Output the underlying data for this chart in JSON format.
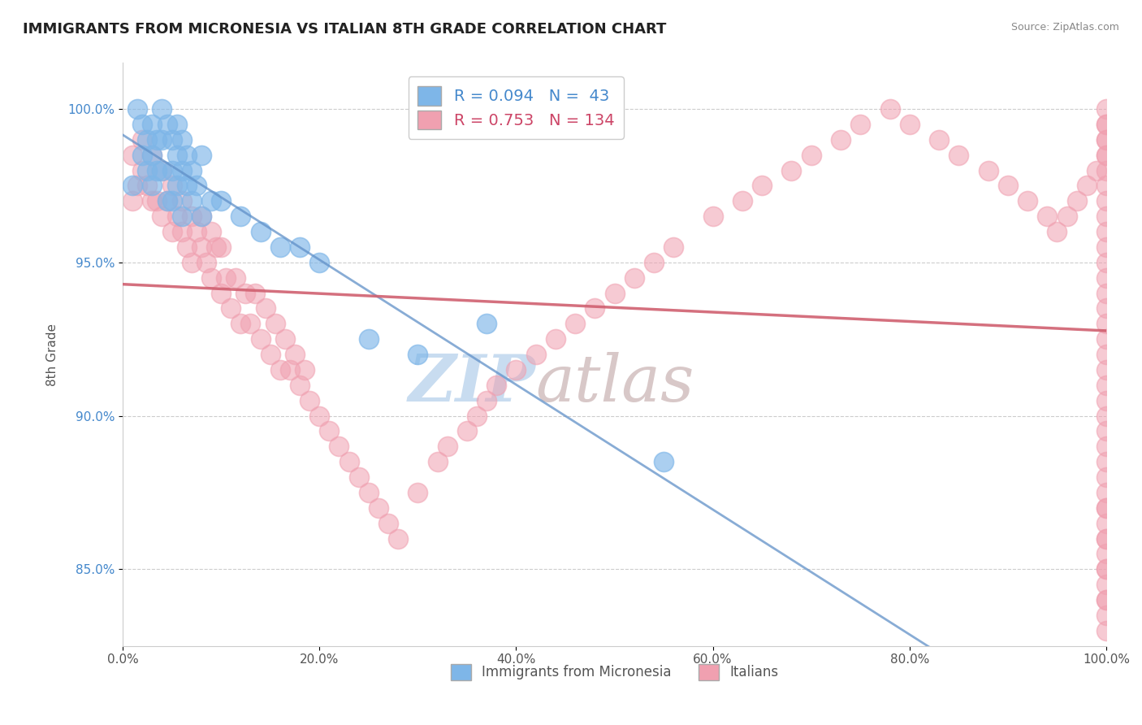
{
  "title": "IMMIGRANTS FROM MICRONESIA VS ITALIAN 8TH GRADE CORRELATION CHART",
  "source": "Source: ZipAtlas.com",
  "ylabel": "8th Grade",
  "xlim": [
    0.0,
    100.0
  ],
  "ylim": [
    82.5,
    101.5
  ],
  "yticks": [
    85.0,
    90.0,
    95.0,
    100.0
  ],
  "ytick_labels": [
    "85.0%",
    "90.0%",
    "95.0%",
    "100.0%"
  ],
  "xticks": [
    0.0,
    20.0,
    40.0,
    60.0,
    80.0,
    100.0
  ],
  "xtick_labels": [
    "0.0%",
    "20.0%",
    "40.0%",
    "60.0%",
    "80.0%",
    "100.0%"
  ],
  "legend_R_blue": "R = 0.094",
  "legend_N_blue": "N =  43",
  "legend_R_pink": "R = 0.753",
  "legend_N_pink": "N = 134",
  "blue_color": "#7EB6E8",
  "pink_color": "#F0A0B0",
  "blue_line_color": "#6090C8",
  "pink_line_color": "#D06070",
  "title_fontsize": 13,
  "watermark_zip": "ZIP",
  "watermark_atlas": "atlas",
  "watermark_zip_color": "#C8DCF0",
  "watermark_atlas_color": "#D8C8C8",
  "blue_scatter_x": [
    1.0,
    1.5,
    2.0,
    2.0,
    2.5,
    2.5,
    3.0,
    3.0,
    3.0,
    3.5,
    3.5,
    4.0,
    4.0,
    4.0,
    4.5,
    4.5,
    5.0,
    5.0,
    5.0,
    5.5,
    5.5,
    5.5,
    6.0,
    6.0,
    6.0,
    6.5,
    6.5,
    7.0,
    7.0,
    7.5,
    8.0,
    8.0,
    9.0,
    10.0,
    12.0,
    14.0,
    16.0,
    18.0,
    20.0,
    25.0,
    30.0,
    37.0,
    55.0
  ],
  "blue_scatter_y": [
    97.5,
    100.0,
    99.5,
    98.5,
    99.0,
    98.0,
    99.5,
    98.5,
    97.5,
    99.0,
    98.0,
    100.0,
    99.0,
    98.0,
    99.5,
    97.0,
    99.0,
    98.0,
    97.0,
    99.5,
    98.5,
    97.5,
    99.0,
    98.0,
    96.5,
    98.5,
    97.5,
    98.0,
    97.0,
    97.5,
    98.5,
    96.5,
    97.0,
    97.0,
    96.5,
    96.0,
    95.5,
    95.5,
    95.0,
    92.5,
    92.0,
    93.0,
    88.5
  ],
  "pink_scatter_x": [
    1.0,
    1.0,
    1.5,
    2.0,
    2.0,
    2.5,
    3.0,
    3.0,
    3.5,
    4.0,
    4.0,
    4.5,
    5.0,
    5.0,
    5.5,
    6.0,
    6.0,
    6.5,
    7.0,
    7.0,
    7.5,
    8.0,
    8.0,
    8.5,
    9.0,
    9.0,
    9.5,
    10.0,
    10.0,
    10.5,
    11.0,
    11.5,
    12.0,
    12.5,
    13.0,
    13.5,
    14.0,
    14.5,
    15.0,
    15.5,
    16.0,
    16.5,
    17.0,
    17.5,
    18.0,
    18.5,
    19.0,
    20.0,
    21.0,
    22.0,
    23.0,
    24.0,
    25.0,
    26.0,
    27.0,
    28.0,
    30.0,
    32.0,
    33.0,
    35.0,
    36.0,
    37.0,
    38.0,
    40.0,
    42.0,
    44.0,
    46.0,
    48.0,
    50.0,
    52.0,
    54.0,
    56.0,
    60.0,
    63.0,
    65.0,
    68.0,
    70.0,
    73.0,
    75.0,
    78.0,
    80.0,
    83.0,
    85.0,
    88.0,
    90.0,
    92.0,
    94.0,
    95.0,
    96.0,
    97.0,
    98.0,
    99.0,
    100.0,
    100.0,
    100.0,
    100.0,
    100.0,
    100.0,
    100.0,
    100.0,
    100.0,
    100.0,
    100.0,
    100.0,
    100.0,
    100.0,
    100.0,
    100.0,
    100.0,
    100.0,
    100.0,
    100.0,
    100.0,
    100.0,
    100.0,
    100.0,
    100.0,
    100.0,
    100.0,
    100.0,
    100.0,
    100.0,
    100.0,
    100.0,
    100.0,
    100.0,
    100.0,
    100.0,
    100.0,
    100.0,
    100.0,
    100.0,
    100.0,
    100.0
  ],
  "pink_scatter_y": [
    97.0,
    98.5,
    97.5,
    98.0,
    99.0,
    97.5,
    97.0,
    98.5,
    97.0,
    96.5,
    98.0,
    97.0,
    96.0,
    97.5,
    96.5,
    96.0,
    97.0,
    95.5,
    95.0,
    96.5,
    96.0,
    95.5,
    96.5,
    95.0,
    94.5,
    96.0,
    95.5,
    94.0,
    95.5,
    94.5,
    93.5,
    94.5,
    93.0,
    94.0,
    93.0,
    94.0,
    92.5,
    93.5,
    92.0,
    93.0,
    91.5,
    92.5,
    91.5,
    92.0,
    91.0,
    91.5,
    90.5,
    90.0,
    89.5,
    89.0,
    88.5,
    88.0,
    87.5,
    87.0,
    86.5,
    86.0,
    87.5,
    88.5,
    89.0,
    89.5,
    90.0,
    90.5,
    91.0,
    91.5,
    92.0,
    92.5,
    93.0,
    93.5,
    94.0,
    94.5,
    95.0,
    95.5,
    96.5,
    97.0,
    97.5,
    98.0,
    98.5,
    99.0,
    99.5,
    100.0,
    99.5,
    99.0,
    98.5,
    98.0,
    97.5,
    97.0,
    96.5,
    96.0,
    96.5,
    97.0,
    97.5,
    98.0,
    98.5,
    99.0,
    99.5,
    100.0,
    99.5,
    99.0,
    98.5,
    98.0,
    97.5,
    97.0,
    96.5,
    96.0,
    95.5,
    95.0,
    94.5,
    94.0,
    93.5,
    93.0,
    92.5,
    92.0,
    91.5,
    91.0,
    90.5,
    90.0,
    89.5,
    89.0,
    88.5,
    88.0,
    87.5,
    87.0,
    86.5,
    86.0,
    85.5,
    85.0,
    84.5,
    84.0,
    83.5,
    83.0,
    84.0,
    85.0,
    86.0,
    87.0
  ]
}
